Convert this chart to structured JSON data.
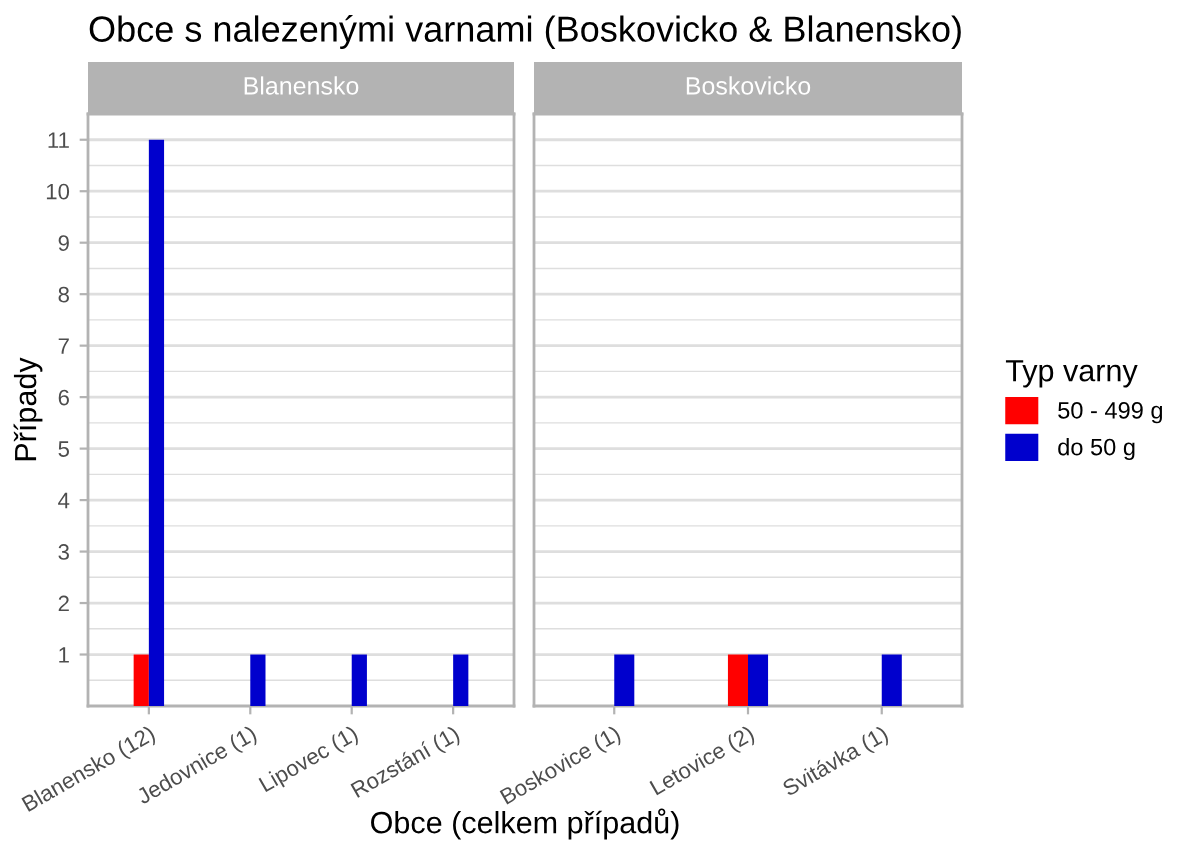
{
  "chart_data": [
    {
      "type": "bar",
      "title": "Obce s nalezenými varnami (Boskovicko & Blanensko)",
      "subtitle": "Blanensko",
      "xlabel": "Obce (celkem případů)",
      "ylabel": "Případy",
      "categories": [
        "Blanensko (12)",
        "Jedovnice (1)",
        "Lipovec (1)",
        "Rozstání (1)"
      ],
      "series": [
        {
          "name": "50 - 499 g",
          "color": "#ff0000",
          "values": [
            1,
            null,
            null,
            null
          ]
        },
        {
          "name": "do 50 g",
          "color": "#0000cd",
          "values": [
            11,
            1,
            1,
            1
          ]
        }
      ],
      "ylim": [
        0,
        11.5
      ],
      "yticks": [
        1,
        2,
        3,
        4,
        5,
        6,
        7,
        8,
        9,
        10,
        11
      ],
      "grid": "y",
      "legend": "right",
      "legend_title": "Typ varny"
    },
    {
      "type": "bar",
      "subtitle": "Boskovicko",
      "categories": [
        "Boskovice (1)",
        "Letovice (2)",
        "Svitávka (1)"
      ],
      "series": [
        {
          "color": "#ff0000",
          "values": [
            null,
            1,
            null
          ]
        },
        {
          "color": "#0000cd",
          "values": [
            1,
            1,
            1
          ]
        }
      ],
      "ylim": [
        0,
        11.5
      ],
      "yticks": [
        1,
        2,
        3,
        4,
        5,
        6,
        7,
        8,
        9,
        10,
        11
      ],
      "grid": "y",
      "tick_labels": "x"
    }
  ]
}
